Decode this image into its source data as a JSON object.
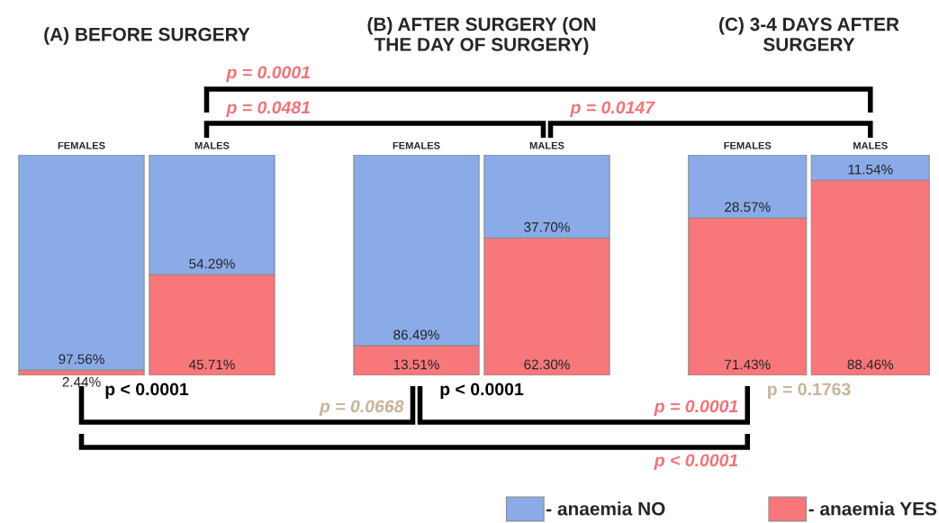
{
  "chart_data": [
    {
      "type": "bar",
      "stacked": true,
      "title": "(A) BEFORE SURGERY",
      "categories": [
        "FEMALES",
        "MALES"
      ],
      "series": [
        {
          "color": "#f7777b",
          "values": [
            2.44,
            45.71
          ],
          "value_labels": [
            "2.44%",
            "45.71%"
          ]
        },
        {
          "color": "#8aabe8",
          "values": [
            97.56,
            54.29
          ],
          "value_labels": [
            "97.56%",
            "54.29%"
          ]
        }
      ],
      "ylim": [
        0,
        100
      ],
      "tick_labels": "x",
      "annotations": [
        "p < 0.0001"
      ]
    },
    {
      "type": "bar",
      "stacked": true,
      "title": "(B) AFTER SURGERY (ON THE DAY OF SURGERY)",
      "categories": [
        "FEMALES",
        "MALES"
      ],
      "series": [
        {
          "name": "- anaemia YES",
          "color": "#f7777b",
          "values": [
            13.51,
            62.3
          ],
          "value_labels": [
            "13.51%",
            "62.30%"
          ]
        },
        {
          "name": "- anaemia NO",
          "color": "#8aabe8",
          "values": [
            86.49,
            37.7
          ],
          "value_labels": [
            "86.49%",
            "37.70%"
          ]
        }
      ],
      "ylim": [
        0,
        100
      ],
      "tick_labels": "x",
      "annotations": [
        "p < 0.0001"
      ],
      "legend": "bottom right"
    },
    {
      "type": "bar",
      "stacked": true,
      "title": "(C) 3-4 DAYS AFTER SURGERY",
      "categories": [
        "FEMALES",
        "MALES"
      ],
      "series": [
        {
          "color": "#f7777b",
          "values": [
            71.43,
            88.46
          ],
          "value_labels": [
            "71.43%",
            "88.46%"
          ]
        },
        {
          "color": "#8aabe8",
          "values": [
            28.57,
            11.54
          ],
          "value_labels": [
            "28.57%",
            "11.54%"
          ]
        }
      ],
      "ylim": [
        0,
        100
      ],
      "tick_labels": "x",
      "annotations": [
        "p = 0.1763"
      ]
    },
    {
      "type": "other",
      "annotations": [
        "p = 0.0001",
        "p = 0.0481",
        "p = 0.0147",
        "p = 0.0668",
        "p = 0.0001",
        "p < 0.0001"
      ]
    }
  ]
}
